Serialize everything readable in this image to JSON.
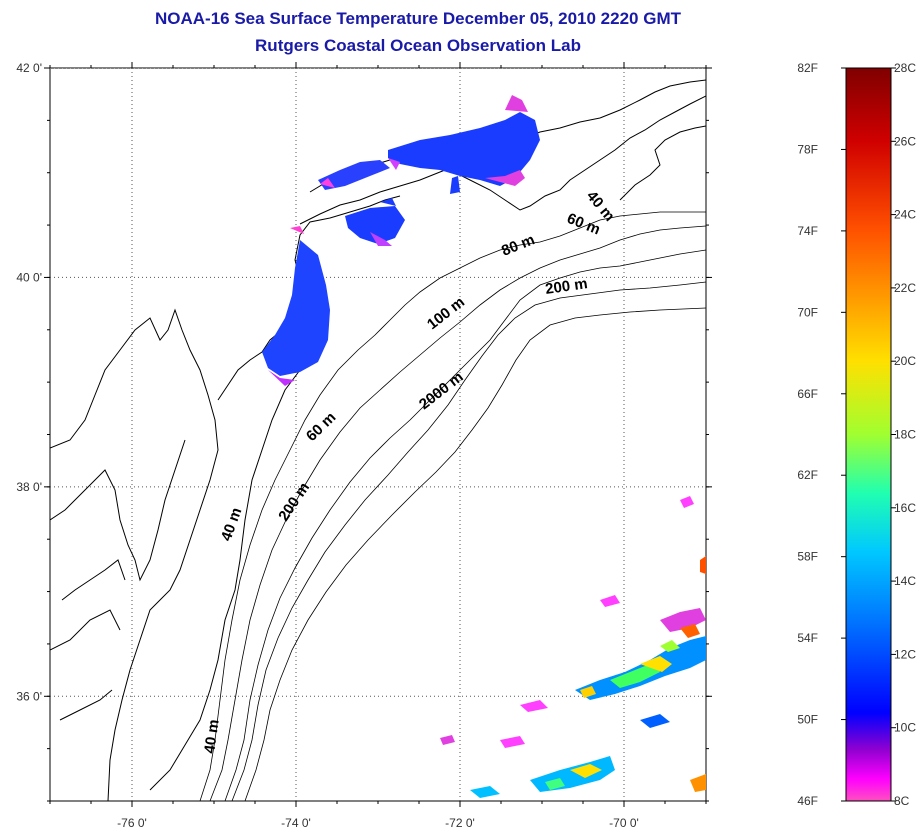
{
  "title": {
    "line1": "NOAA-16 Sea Surface Temperature December 05, 2010 2220 GMT",
    "line2": "Rutgers Coastal Ocean Observation Lab"
  },
  "map": {
    "lat_range": [
      35,
      42
    ],
    "lon_range": [
      -77,
      -69
    ],
    "lat_ticks": [
      {
        "value": 42,
        "label": "42 0'"
      },
      {
        "value": 40,
        "label": "40 0'"
      },
      {
        "value": 38,
        "label": "38 0'"
      },
      {
        "value": 36,
        "label": "36 0'"
      }
    ],
    "lon_ticks": [
      {
        "value": -76,
        "label": "-76 0'"
      },
      {
        "value": -74,
        "label": "-74 0'"
      },
      {
        "value": -72,
        "label": "-72 0'"
      },
      {
        "value": -70,
        "label": "-70 0'"
      }
    ],
    "grid": "dotted",
    "depth_labels": [
      "40 m",
      "60 m",
      "80 m",
      "200 m",
      "100 m",
      "2000 m",
      "60 m",
      "200 m",
      "40 m",
      "40 m"
    ]
  },
  "colorbar": {
    "fahrenheit_labels": [
      "82F",
      "78F",
      "74F",
      "70F",
      "66F",
      "62F",
      "58F",
      "54F",
      "50F",
      "46F"
    ],
    "celsius_labels": [
      "28C",
      "26C",
      "24C",
      "22C",
      "20C",
      "18C",
      "16C",
      "14C",
      "12C",
      "10C",
      "8C"
    ],
    "colors": [
      "#800000",
      "#d00000",
      "#ff4000",
      "#ff9000",
      "#ffd800",
      "#e0ff00",
      "#80ff40",
      "#20ffa0",
      "#00e0ff",
      "#0090ff",
      "#0040ff",
      "#0000ff",
      "#8000e0",
      "#ff00ff",
      "#ff40c0"
    ]
  }
}
